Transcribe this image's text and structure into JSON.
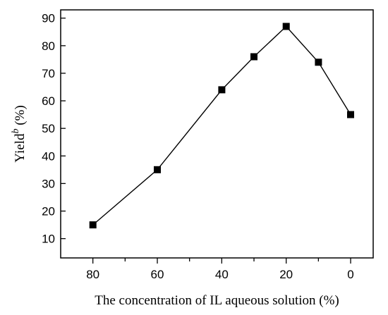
{
  "chart_data": {
    "type": "line",
    "x": [
      80,
      60,
      40,
      30,
      20,
      10,
      0
    ],
    "series": [
      {
        "values": [
          15,
          35,
          64,
          76,
          87,
          74,
          55
        ],
        "color": "#000000",
        "marker": "square"
      }
    ],
    "xlabel": "The concentration of IL aqueous solution (%)",
    "ylabel": {
      "main": "Yield",
      "superscript": "b",
      "unit": " (%)"
    },
    "xlim": [
      90,
      -7
    ],
    "ylim": [
      3,
      93
    ],
    "x_reversed": true,
    "x_major_ticks": [
      80,
      60,
      40,
      20,
      0
    ],
    "x_minor_ticks": [
      70,
      50,
      30,
      10
    ],
    "y_ticks": [
      10,
      20,
      30,
      40,
      50,
      60,
      70,
      80,
      90
    ],
    "grid": false,
    "legend": "none",
    "frame": "box"
  }
}
